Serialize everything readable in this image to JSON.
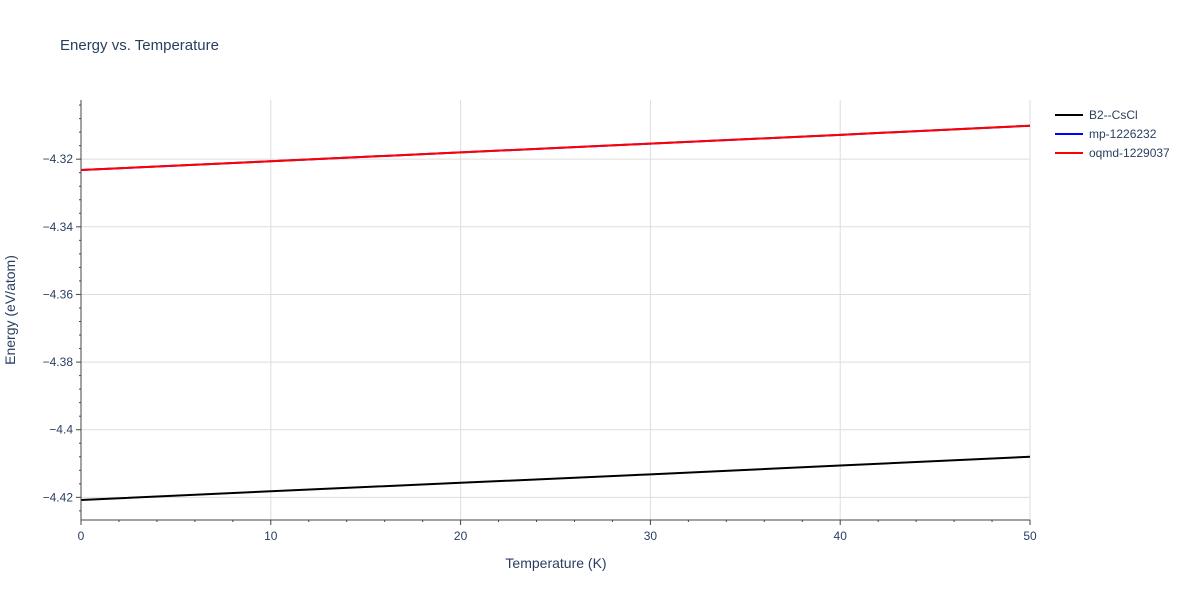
{
  "chart_data": {
    "type": "line",
    "title": "Energy vs. Temperature",
    "xlabel": "Temperature (K)",
    "ylabel": "Energy (eV/atom)",
    "xlim": [
      0,
      50
    ],
    "ylim": [
      -4.4267,
      -4.3025
    ],
    "x_ticks": [
      0,
      10,
      20,
      30,
      40,
      50
    ],
    "x_tick_labels": [
      "0",
      "10",
      "20",
      "30",
      "40",
      "50"
    ],
    "y_ticks": [
      -4.42,
      -4.4,
      -4.38,
      -4.36,
      -4.34,
      -4.32
    ],
    "y_tick_labels": [
      "−4.42",
      "−4.4",
      "−4.38",
      "−4.36",
      "−4.34",
      "−4.32"
    ],
    "grid": true,
    "legend_position": "top-right outside",
    "series": [
      {
        "name": "B2--CsCl",
        "color": "#000000",
        "x": [
          0,
          10,
          20,
          30,
          40,
          50
        ],
        "y": [
          -4.4208,
          -4.4182,
          -4.4157,
          -4.4132,
          -4.4106,
          -4.408
        ]
      },
      {
        "name": "mp-1226232",
        "color": "#0000ff",
        "x": [
          0,
          10,
          20,
          30,
          40,
          50
        ],
        "y": [
          -4.3232,
          -4.3206,
          -4.318,
          -4.3154,
          -4.3128,
          -4.3101
        ]
      },
      {
        "name": "oqmd-1229037",
        "color": "#ff0000",
        "x": [
          0,
          10,
          20,
          30,
          40,
          50
        ],
        "y": [
          -4.3232,
          -4.3206,
          -4.318,
          -4.3154,
          -4.3128,
          -4.3101
        ]
      }
    ]
  }
}
